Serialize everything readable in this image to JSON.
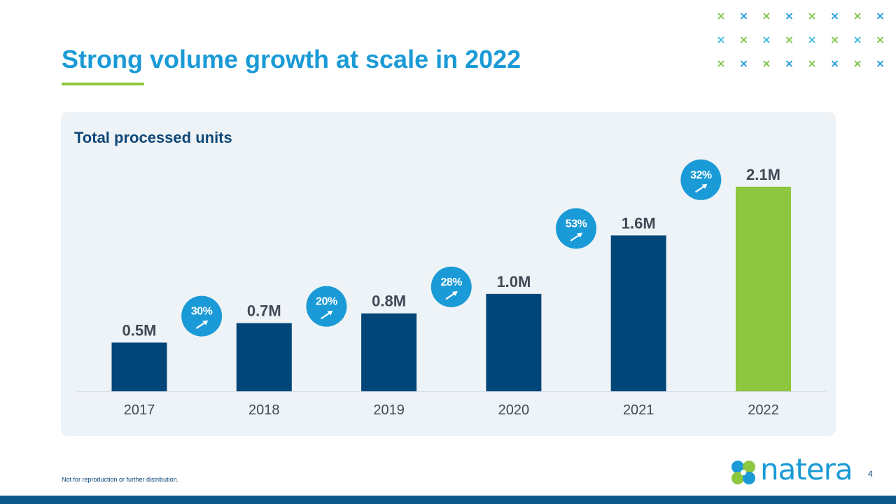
{
  "slide": {
    "title": "Strong volume growth at scale in 2022",
    "footnote": "Not for reproduction or further distribution.",
    "page_number": "4",
    "logo_text": "natera"
  },
  "colors": {
    "title_blue": "#1a9ad6",
    "navy_bar": "#004679",
    "highlight_green": "#8dc63f",
    "growth_bubble": "#1a9ad6",
    "panel_bg": "#eef3f7",
    "pattern_green": "#7ac143",
    "pattern_blue": "#1a9ad6",
    "pattern_cyan": "#34b8d8"
  },
  "chart_data": {
    "type": "bar",
    "title": "Total processed units",
    "categories": [
      "2017",
      "2018",
      "2019",
      "2020",
      "2021",
      "2022"
    ],
    "values": [
      0.5,
      0.7,
      0.8,
      1.0,
      1.6,
      2.1
    ],
    "value_labels": [
      "0.5M",
      "0.7M",
      "0.8M",
      "1.0M",
      "1.6M",
      "2.1M"
    ],
    "unit": "M",
    "growth_rates": [
      "30%",
      "20%",
      "28%",
      "53%",
      "32%"
    ],
    "highlight_category": "2022",
    "ylim": [
      0,
      2.35
    ],
    "grid": false,
    "legend": "none"
  }
}
